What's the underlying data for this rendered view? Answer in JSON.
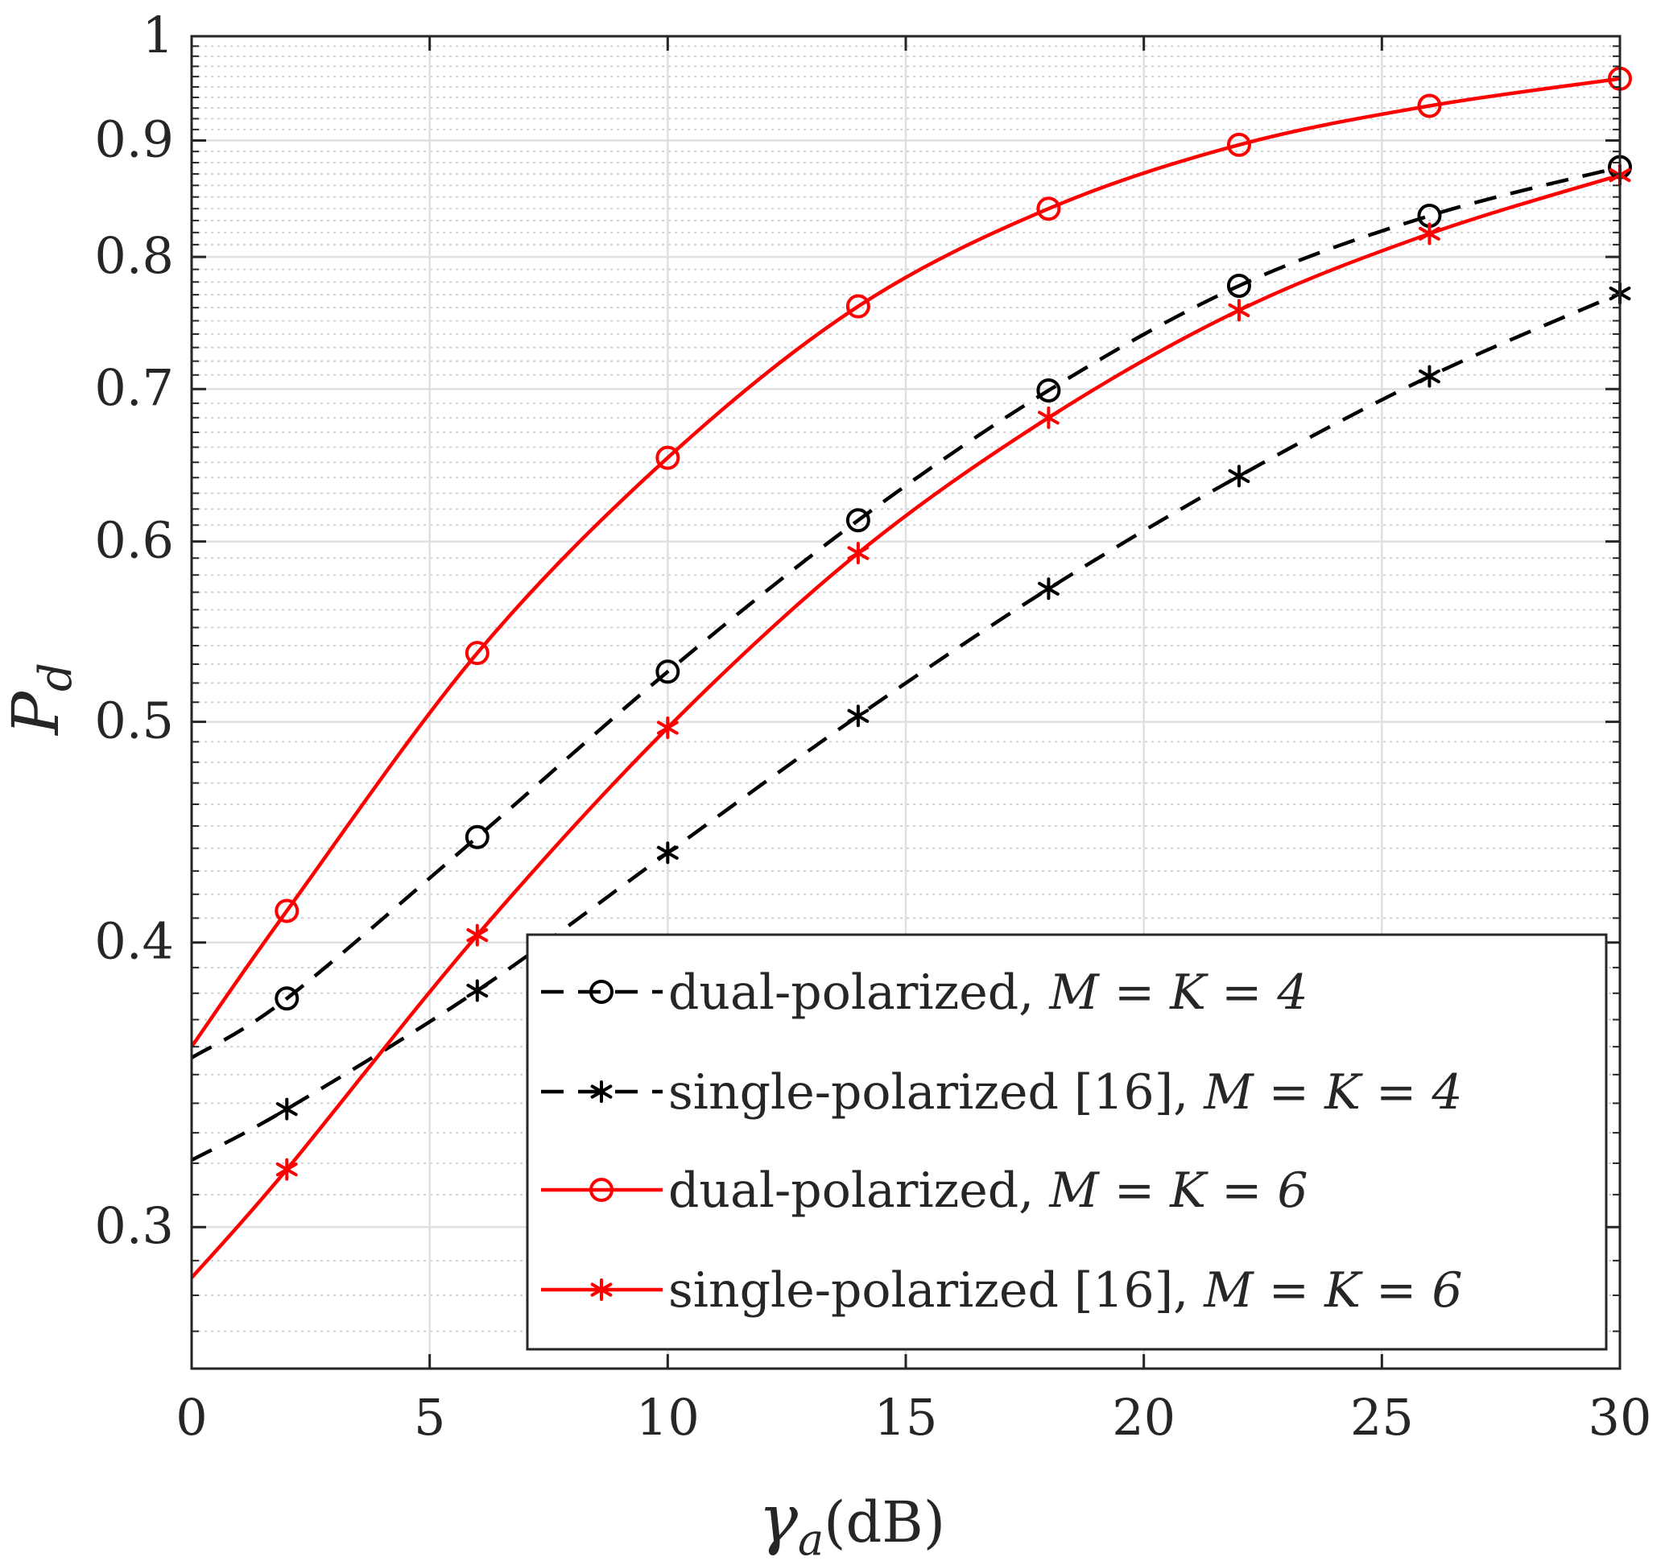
{
  "chart_data": {
    "type": "line",
    "title": "",
    "xlabel": "γ_a(dB)",
    "xlabel_symbol": "γ",
    "xlabel_subscript": "a",
    "xlabel_unit": "(dB)",
    "ylabel": "P_d",
    "ylabel_symbol": "P",
    "ylabel_subscript": "d",
    "y_scale": "log",
    "xlim": [
      0,
      30
    ],
    "ylim": [
      0.26,
      1.0
    ],
    "x_ticks": [
      0,
      5,
      10,
      15,
      20,
      25,
      30
    ],
    "x_tick_labels": [
      "0",
      "5",
      "10",
      "15",
      "20",
      "25",
      "30"
    ],
    "y_ticks": [
      0.3,
      0.4,
      0.5,
      0.6,
      0.7,
      0.8,
      0.9,
      1.0
    ],
    "y_tick_labels": [
      "0.3",
      "0.4",
      "0.5",
      "0.6",
      "0.7",
      "0.8",
      "0.9",
      "1"
    ],
    "y_minor_ticks": [
      0.27,
      0.28,
      0.29,
      0.31,
      0.32,
      0.33,
      0.34,
      0.35,
      0.36,
      0.37,
      0.38,
      0.39,
      0.41,
      0.42,
      0.43,
      0.44,
      0.45,
      0.46,
      0.47,
      0.48,
      0.49,
      0.51,
      0.52,
      0.53,
      0.54,
      0.55,
      0.56,
      0.57,
      0.58,
      0.59,
      0.61,
      0.62,
      0.63,
      0.64,
      0.65,
      0.66,
      0.67,
      0.68,
      0.69,
      0.71,
      0.72,
      0.73,
      0.74,
      0.75,
      0.76,
      0.77,
      0.78,
      0.79,
      0.81,
      0.82,
      0.83,
      0.84,
      0.85,
      0.86,
      0.87,
      0.88,
      0.89,
      0.91,
      0.92,
      0.93,
      0.94,
      0.95,
      0.96,
      0.97,
      0.98,
      0.99
    ],
    "grid": true,
    "legend_position": "bottom-right",
    "series": [
      {
        "name": "dual-polarized, M = K = 4",
        "label_text": "dual-polarized, ",
        "label_math": "M = K = 4",
        "color": "#000000",
        "line_style": "dashed",
        "marker": "circle",
        "curve_x": [
          0,
          2,
          6,
          10,
          14,
          18,
          22,
          26,
          30
        ],
        "curve_y": [
          0.356,
          0.378,
          0.445,
          0.526,
          0.613,
          0.699,
          0.777,
          0.834,
          0.876
        ],
        "marker_x": [
          2,
          6,
          10,
          14,
          18,
          22,
          26,
          30
        ],
        "marker_y": [
          0.378,
          0.445,
          0.526,
          0.613,
          0.699,
          0.777,
          0.834,
          0.876
        ]
      },
      {
        "name": "single-polarized [16], M = K = 4",
        "label_text": "single-polarized [16], ",
        "label_math": "M = K = 4",
        "color": "#000000",
        "line_style": "dashed",
        "marker": "asterisk",
        "curve_x": [
          0,
          2,
          6,
          10,
          14,
          18,
          22,
          26,
          30
        ],
        "curve_y": [
          0.321,
          0.338,
          0.381,
          0.438,
          0.503,
          0.572,
          0.641,
          0.709,
          0.771
        ],
        "marker_x": [
          2,
          6,
          10,
          14,
          18,
          22,
          26,
          30
        ],
        "marker_y": [
          0.338,
          0.381,
          0.438,
          0.503,
          0.572,
          0.641,
          0.709,
          0.771
        ]
      },
      {
        "name": "dual-polarized, M = K = 6",
        "label_text": "dual-polarized, ",
        "label_math": "M = K = 6",
        "color": "#ff0000",
        "line_style": "solid",
        "marker": "circle",
        "curve_x": [
          0,
          2,
          6,
          10,
          14,
          18,
          22,
          26,
          30
        ],
        "curve_y": [
          0.36,
          0.413,
          0.536,
          0.653,
          0.761,
          0.84,
          0.896,
          0.932,
          0.958
        ],
        "marker_x": [
          2,
          6,
          10,
          14,
          18,
          22,
          26,
          30
        ],
        "marker_y": [
          0.413,
          0.536,
          0.653,
          0.761,
          0.84,
          0.896,
          0.932,
          0.958
        ]
      },
      {
        "name": "single-polarized [16], M = K = 6",
        "label_text": "single-polarized [16], ",
        "label_math": "M = K = 6",
        "color": "#ff0000",
        "line_style": "solid",
        "marker": "asterisk",
        "curve_x": [
          0,
          2,
          6,
          10,
          14,
          18,
          22,
          26,
          30
        ],
        "curve_y": [
          0.285,
          0.318,
          0.403,
          0.497,
          0.593,
          0.68,
          0.758,
          0.819,
          0.869
        ],
        "marker_x": [
          2,
          6,
          10,
          14,
          18,
          22,
          26,
          30
        ],
        "marker_y": [
          0.318,
          0.403,
          0.497,
          0.593,
          0.68,
          0.758,
          0.819,
          0.869
        ]
      }
    ]
  }
}
